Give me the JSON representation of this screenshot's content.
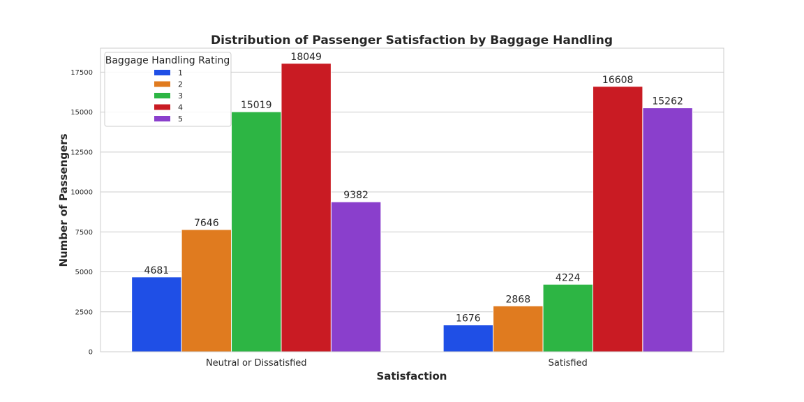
{
  "chart_data": {
    "type": "bar",
    "title": "Distribution of Passenger Satisfaction by Baggage Handling",
    "xlabel": "Satisfaction",
    "ylabel": "Number of Passengers",
    "categories": [
      "Neutral or Dissatisfied",
      "Satisfied"
    ],
    "ylim": [
      0,
      19000
    ],
    "yticks": [
      0,
      2500,
      5000,
      7500,
      10000,
      12500,
      15000,
      17500
    ],
    "grid": true,
    "legend": {
      "title": "Baggage Handling Rating",
      "placement": "top-left"
    },
    "series": [
      {
        "name": "1",
        "color": "#1f4fe6",
        "values": [
          4681,
          1676
        ]
      },
      {
        "name": "2",
        "color": "#e07b1f",
        "values": [
          7646,
          2868
        ]
      },
      {
        "name": "3",
        "color": "#2db544",
        "values": [
          15019,
          4224
        ]
      },
      {
        "name": "4",
        "color": "#c91b23",
        "values": [
          18049,
          16608
        ]
      },
      {
        "name": "5",
        "color": "#8a3fcc",
        "values": [
          9382,
          15262
        ]
      }
    ]
  }
}
